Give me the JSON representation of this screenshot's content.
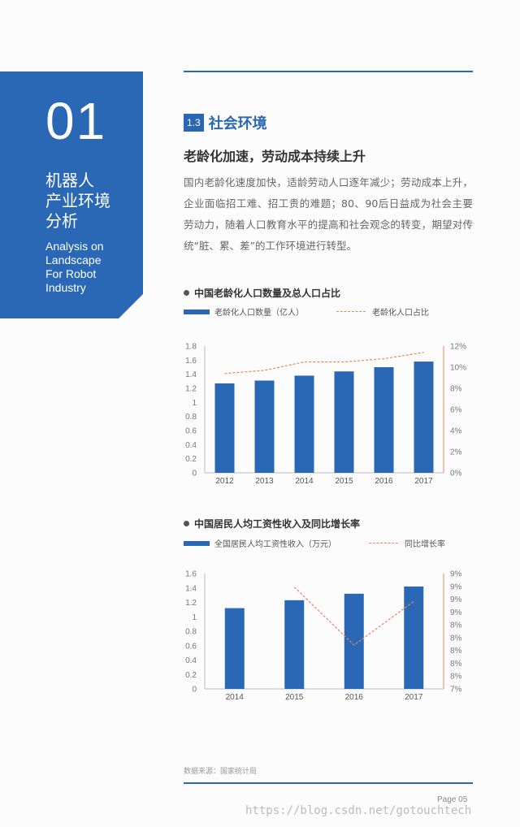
{
  "sidebar": {
    "number": "01",
    "cn_title": "机器人\n产业环境\n分析",
    "en_title": "Analysis on\nLandscape\nFor Robot\nIndustry"
  },
  "section": {
    "badge": "1.3",
    "title": "社会环境"
  },
  "subtitle": "老龄化加速，劳动成本持续上升",
  "paragraph": "国内老龄化速度加快，适龄劳动人口逐年减少；劳动成本上升，企业面临招工难、招工贵的难题；80、90后日益成为社会主要劳动力，随着人口教育水平的提高和社会观念的转变，期望对传统“脏、累、差”的工作环境进行转型。",
  "chart_data": [
    {
      "type": "bar",
      "title": "中国老龄化人口数量及总人口占比",
      "categories": [
        "2012",
        "2013",
        "2014",
        "2015",
        "2016",
        "2017"
      ],
      "series": [
        {
          "name": "老龄化人口数量（亿人）",
          "values": [
            1.27,
            1.31,
            1.38,
            1.44,
            1.5,
            1.58
          ],
          "axis": "left"
        },
        {
          "name": "老龄化人口占比",
          "values": [
            9.4,
            9.7,
            10.5,
            10.5,
            10.8,
            11.4
          ],
          "axis": "right",
          "style": "dashed-line"
        }
      ],
      "ylim": [
        0,
        1.8
      ],
      "yticks": [
        "0",
        "0.2",
        "0.4",
        "0.6",
        "0.8",
        "1",
        "1.2",
        "1.4",
        "1.6",
        "1.8"
      ],
      "y2lim": [
        0,
        12
      ],
      "y2ticks": [
        "0%",
        "2%",
        "4%",
        "6%",
        "8%",
        "10%",
        "12%"
      ],
      "colors": {
        "bar": "#2a68b5",
        "line": "#e9875a"
      }
    },
    {
      "type": "bar",
      "title": "中国居民人均工资性收入及同比增长率",
      "categories": [
        "2014",
        "2015",
        "2016",
        "2017"
      ],
      "series": [
        {
          "name": "全国居民人均工资性收入（万元）",
          "values": [
            1.12,
            1.23,
            1.32,
            1.42
          ],
          "axis": "left"
        },
        {
          "name": "同比增长率",
          "values": [
            null,
            9.56,
            8.1,
            9.2
          ],
          "axis": "right",
          "style": "dashed-line"
        }
      ],
      "ylim": [
        0,
        1.6
      ],
      "yticks": [
        "0",
        "0.2",
        "0.4",
        "0.6",
        "0.8",
        "1",
        "1.2",
        "1.4",
        "1.6"
      ],
      "y2lim": [
        7,
        9.9
      ],
      "y2ticks": [
        "7%",
        "8%",
        "8%",
        "8%",
        "8%",
        "8%",
        "9%",
        "9%",
        "9%",
        "9%"
      ],
      "colors": {
        "bar": "#2a68b5",
        "line": "#e9875a"
      }
    }
  ],
  "source": "数据来源：国家统计局",
  "page_label": "Page 05",
  "watermark": "https://blog.csdn.net/gotouchtech"
}
